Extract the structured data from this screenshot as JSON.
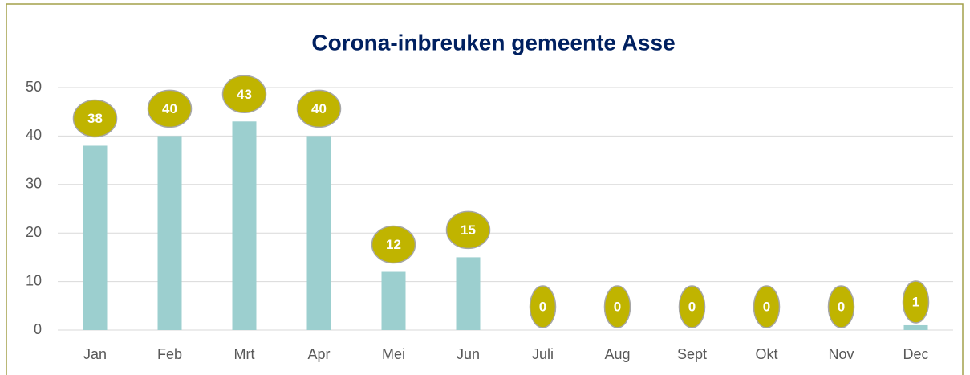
{
  "chart_data": {
    "type": "bar",
    "title": "Corona-inbreuken gemeente Asse",
    "categories": [
      "Jan",
      "Feb",
      "Mrt",
      "Apr",
      "Mei",
      "Jun",
      "Juli",
      "Aug",
      "Sept",
      "Okt",
      "Nov",
      "Dec"
    ],
    "values": [
      38,
      40,
      43,
      40,
      12,
      15,
      0,
      0,
      0,
      0,
      0,
      1
    ],
    "color": "#9ccfcf",
    "label_color": "#c0b400",
    "ylim": [
      0,
      50
    ],
    "yticks": [
      0,
      10,
      20,
      30,
      40,
      50
    ],
    "grid": true
  }
}
